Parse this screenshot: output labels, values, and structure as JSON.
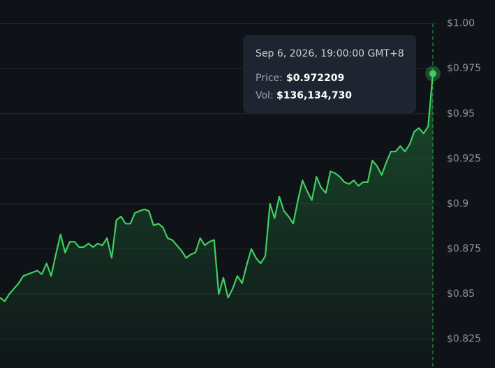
{
  "chart_data": {
    "type": "area-line",
    "color": "#3fcf5f",
    "values": [
      0.848,
      0.846,
      0.85,
      0.853,
      0.856,
      0.86,
      0.861,
      0.862,
      0.863,
      0.861,
      0.867,
      0.86,
      0.872,
      0.883,
      0.873,
      0.879,
      0.879,
      0.876,
      0.876,
      0.878,
      0.876,
      0.878,
      0.877,
      0.881,
      0.87,
      0.891,
      0.893,
      0.889,
      0.889,
      0.895,
      0.896,
      0.897,
      0.896,
      0.888,
      0.889,
      0.887,
      0.881,
      0.88,
      0.877,
      0.874,
      0.87,
      0.872,
      0.873,
      0.881,
      0.877,
      0.879,
      0.88,
      0.85,
      0.859,
      0.848,
      0.853,
      0.86,
      0.856,
      0.866,
      0.875,
      0.87,
      0.867,
      0.871,
      0.9,
      0.892,
      0.904,
      0.896,
      0.893,
      0.889,
      0.902,
      0.913,
      0.907,
      0.902,
      0.915,
      0.909,
      0.906,
      0.918,
      0.917,
      0.915,
      0.912,
      0.911,
      0.913,
      0.91,
      0.912,
      0.912,
      0.924,
      0.921,
      0.916,
      0.923,
      0.929,
      0.929,
      0.932,
      0.929,
      0.933,
      0.94,
      0.942,
      0.939,
      0.943,
      0.972209
    ],
    "ylim": [
      0.809,
      1.013
    ],
    "yticks": [
      {
        "value": 1.0,
        "label": "$1.00"
      },
      {
        "value": 0.975,
        "label": "$0.975"
      },
      {
        "value": 0.95,
        "label": "$0.95"
      },
      {
        "value": 0.925,
        "label": "$0.925"
      },
      {
        "value": 0.9,
        "label": "$0.9"
      },
      {
        "value": 0.875,
        "label": "$0.875"
      },
      {
        "value": 0.85,
        "label": "$0.85"
      },
      {
        "value": 0.825,
        "label": "$0.825"
      }
    ],
    "grid": true,
    "tooltip": {
      "date": "Sep 6, 2026, 19:00:00 GMT+8",
      "price_name": "Price:",
      "price": "$0.972209",
      "vol_name": "Vol:",
      "vol": "$136,134,730"
    }
  }
}
